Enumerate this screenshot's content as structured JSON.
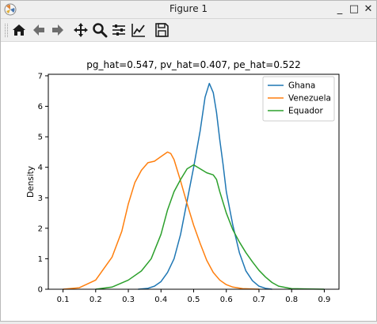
{
  "window": {
    "title": "Figure 1",
    "minimize_label": "_",
    "maximize_label": "□",
    "close_label": "✕"
  },
  "toolbar": {
    "buttons": [
      "home-icon",
      "back-arrow-icon",
      "forward-arrow-icon",
      "pan-icon",
      "zoom-icon",
      "subplots-icon",
      "edit-axis-icon",
      "save-icon"
    ]
  },
  "chart_data": {
    "type": "line",
    "title": "pg_hat=0.547,  pv_hat=0.407,  pe_hat=0.522",
    "xlabel": "",
    "ylabel": "Density",
    "xlim": [
      0.055,
      0.945
    ],
    "ylim": [
      0,
      7.05
    ],
    "xticks": [
      "0.1",
      "0.2",
      "0.3",
      "0.4",
      "0.5",
      "0.6",
      "0.7",
      "0.8",
      "0.9"
    ],
    "yticks": [
      "0",
      "1",
      "2",
      "3",
      "4",
      "5",
      "6",
      "7"
    ],
    "grid": false,
    "legend_position": "top-right",
    "series": [
      {
        "name": "Ghana",
        "color": "#1f77b4",
        "points": [
          [
            0.33,
            0
          ],
          [
            0.36,
            0.03
          ],
          [
            0.38,
            0.1
          ],
          [
            0.4,
            0.25
          ],
          [
            0.42,
            0.55
          ],
          [
            0.44,
            1.0
          ],
          [
            0.46,
            1.8
          ],
          [
            0.48,
            2.9
          ],
          [
            0.5,
            4.0
          ],
          [
            0.52,
            5.2
          ],
          [
            0.535,
            6.3
          ],
          [
            0.548,
            6.75
          ],
          [
            0.56,
            6.45
          ],
          [
            0.57,
            5.8
          ],
          [
            0.58,
            4.9
          ],
          [
            0.59,
            4.1
          ],
          [
            0.6,
            3.2
          ],
          [
            0.62,
            2.1
          ],
          [
            0.64,
            1.2
          ],
          [
            0.66,
            0.6
          ],
          [
            0.68,
            0.28
          ],
          [
            0.7,
            0.1
          ],
          [
            0.72,
            0.03
          ],
          [
            0.74,
            0
          ]
        ]
      },
      {
        "name": "Venezuela",
        "color": "#ff7f0e",
        "points": [
          [
            0.1,
            0
          ],
          [
            0.15,
            0.05
          ],
          [
            0.2,
            0.3
          ],
          [
            0.25,
            1.05
          ],
          [
            0.28,
            1.9
          ],
          [
            0.3,
            2.8
          ],
          [
            0.32,
            3.5
          ],
          [
            0.34,
            3.9
          ],
          [
            0.36,
            4.15
          ],
          [
            0.38,
            4.2
          ],
          [
            0.4,
            4.35
          ],
          [
            0.42,
            4.5
          ],
          [
            0.43,
            4.45
          ],
          [
            0.44,
            4.25
          ],
          [
            0.46,
            3.55
          ],
          [
            0.48,
            2.8
          ],
          [
            0.5,
            2.1
          ],
          [
            0.52,
            1.5
          ],
          [
            0.54,
            0.95
          ],
          [
            0.56,
            0.55
          ],
          [
            0.58,
            0.3
          ],
          [
            0.6,
            0.15
          ],
          [
            0.62,
            0.07
          ],
          [
            0.65,
            0.02
          ],
          [
            0.7,
            0
          ]
        ]
      },
      {
        "name": "Equador",
        "color": "#2ca02c",
        "points": [
          [
            0.2,
            0
          ],
          [
            0.25,
            0.07
          ],
          [
            0.3,
            0.3
          ],
          [
            0.34,
            0.6
          ],
          [
            0.37,
            1.0
          ],
          [
            0.4,
            1.8
          ],
          [
            0.42,
            2.6
          ],
          [
            0.44,
            3.2
          ],
          [
            0.46,
            3.6
          ],
          [
            0.48,
            3.95
          ],
          [
            0.5,
            4.08
          ],
          [
            0.52,
            3.95
          ],
          [
            0.54,
            3.82
          ],
          [
            0.56,
            3.75
          ],
          [
            0.57,
            3.6
          ],
          [
            0.58,
            3.2
          ],
          [
            0.6,
            2.5
          ],
          [
            0.62,
            1.95
          ],
          [
            0.64,
            1.55
          ],
          [
            0.66,
            1.2
          ],
          [
            0.68,
            0.9
          ],
          [
            0.7,
            0.62
          ],
          [
            0.72,
            0.4
          ],
          [
            0.74,
            0.22
          ],
          [
            0.76,
            0.1
          ],
          [
            0.8,
            0.02
          ],
          [
            0.9,
            0
          ]
        ]
      }
    ]
  }
}
